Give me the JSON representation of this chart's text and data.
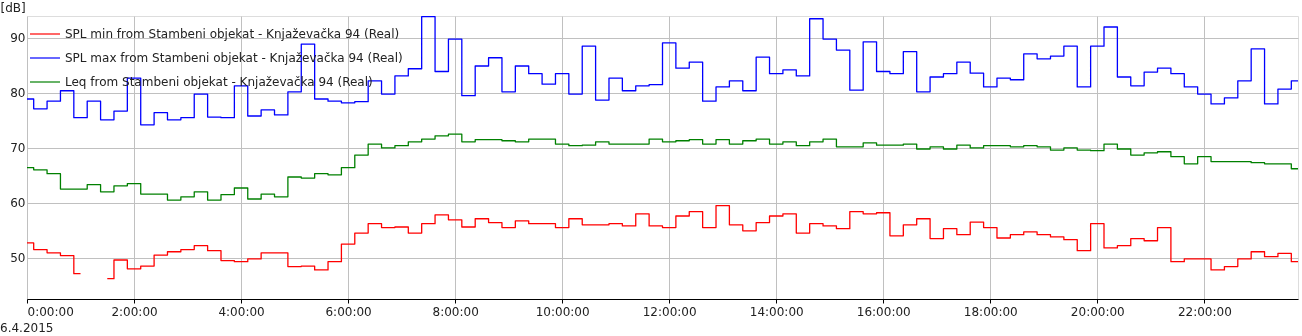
{
  "chart_data": {
    "type": "step",
    "ylabel": "[dB]",
    "x": [
      0,
      0.25,
      0.5,
      0.75,
      1,
      1.25,
      1.5,
      1.75,
      2,
      2.25,
      2.5,
      2.75,
      3,
      3.25,
      3.5,
      3.75,
      4,
      4.25,
      4.5,
      4.75,
      5,
      5.25,
      5.5,
      5.75,
      6,
      6.25,
      6.5,
      6.75,
      7,
      7.25,
      7.5,
      7.75,
      8,
      8.25,
      8.5,
      8.75,
      9,
      9.25,
      9.5,
      9.75,
      10,
      10.25,
      10.5,
      10.75,
      11,
      11.25,
      11.5,
      11.75,
      12,
      12.25,
      12.5,
      12.75,
      13,
      13.25,
      13.5,
      13.75,
      14,
      14.25,
      14.5,
      14.75,
      15,
      15.25,
      15.5,
      15.75,
      16,
      16.25,
      16.5,
      16.75,
      17,
      17.25,
      17.5,
      17.75,
      18,
      18.25,
      18.5,
      18.75,
      19,
      19.25,
      19.5,
      19.75,
      20,
      20.25,
      20.5,
      20.75,
      21,
      21.25,
      21.5,
      21.75,
      22,
      22.25,
      22.5,
      22.75,
      23,
      23.25,
      23.5,
      23.75
    ],
    "series": [
      {
        "name": "SPL min from Stambeni objekat - Knjaževačka 94 (Real)",
        "color": "#ff0000",
        "values": [
          52.7,
          51.5,
          50.9,
          50.4,
          47.1,
          null,
          46.2,
          49.6,
          48.0,
          48.5,
          50.5,
          51.1,
          51.5,
          52.2,
          51.3,
          49.5,
          49.3,
          49.8,
          50.9,
          50.9,
          48.4,
          48.5,
          47.8,
          49.3,
          52.5,
          54.5,
          56.2,
          55.5,
          55.6,
          54.5,
          56.2,
          57.8,
          56.9,
          55.6,
          57.1,
          56.4,
          55.5,
          56.7,
          56.2,
          56.2,
          55.5,
          57.1,
          56.0,
          56.0,
          56.2,
          55.8,
          58.0,
          55.8,
          55.5,
          57.6,
          58.4,
          55.5,
          59.5,
          56.0,
          54.9,
          56.4,
          57.6,
          58.0,
          54.5,
          56.2,
          55.8,
          55.3,
          58.4,
          58.0,
          58.2,
          54.0,
          56.0,
          57.1,
          53.5,
          55.3,
          54.2,
          56.5,
          55.5,
          53.6,
          54.2,
          54.7,
          54.2,
          53.8,
          53.3,
          51.3,
          56.2,
          51.8,
          52.2,
          53.5,
          53.1,
          55.5,
          49.3,
          49.8,
          49.8,
          47.8,
          48.4,
          49.8,
          51.1,
          50.2,
          50.8,
          49.3
        ]
      },
      {
        "name": "SPL max from Stambeni objekat - Knjaževačka 94 (Real)",
        "color": "#0000ff",
        "values": [
          78.9,
          77.1,
          78.5,
          80.4,
          75.5,
          78.5,
          75.1,
          76.7,
          82.7,
          74.2,
          76.4,
          75.1,
          75.5,
          79.8,
          75.6,
          75.5,
          81.3,
          75.8,
          76.9,
          76.0,
          80.2,
          88.9,
          78.9,
          78.5,
          78.2,
          78.4,
          82.2,
          79.8,
          83.1,
          84.4,
          93.9,
          83.9,
          89.8,
          79.5,
          84.9,
          86.4,
          80.2,
          84.9,
          83.5,
          81.6,
          83.5,
          79.8,
          88.5,
          78.7,
          82.7,
          80.4,
          81.3,
          81.5,
          89.1,
          84.5,
          85.6,
          78.5,
          81.1,
          82.2,
          80.4,
          86.5,
          83.5,
          84.2,
          83.1,
          93.5,
          89.8,
          87.8,
          80.5,
          89.3,
          83.9,
          83.5,
          87.5,
          80.2,
          82.9,
          83.5,
          85.6,
          83.6,
          81.1,
          82.7,
          82.4,
          87.1,
          86.2,
          86.7,
          88.5,
          81.1,
          88.5,
          92.0,
          82.9,
          81.3,
          83.8,
          84.5,
          83.5,
          81.1,
          79.8,
          78.0,
          79.1,
          82.2,
          88.0,
          78.0,
          80.7,
          82.2
        ]
      },
      {
        "name": "Leq from Stambeni objekat - Knjaževačka 94 (Real)",
        "color": "#008000",
        "values": [
          66.4,
          66.0,
          65.3,
          62.5,
          62.5,
          63.3,
          62.0,
          63.1,
          63.5,
          61.6,
          61.6,
          60.5,
          61.1,
          62.0,
          60.5,
          61.5,
          62.7,
          60.7,
          61.6,
          61.1,
          64.7,
          64.5,
          65.3,
          65.1,
          66.4,
          68.7,
          70.7,
          70.0,
          70.4,
          71.1,
          71.6,
          72.2,
          72.5,
          71.1,
          71.5,
          71.5,
          71.3,
          71.1,
          71.6,
          71.6,
          70.7,
          70.4,
          70.5,
          71.1,
          70.7,
          70.7,
          70.7,
          71.6,
          71.1,
          71.3,
          71.5,
          70.7,
          71.5,
          70.7,
          71.3,
          71.6,
          70.7,
          71.1,
          70.4,
          71.1,
          71.6,
          70.2,
          70.2,
          70.9,
          70.5,
          70.5,
          70.7,
          69.8,
          70.2,
          69.8,
          70.5,
          70.0,
          70.4,
          70.4,
          70.2,
          70.4,
          70.2,
          69.6,
          70.0,
          69.6,
          69.5,
          70.7,
          69.8,
          68.7,
          69.1,
          69.3,
          68.4,
          67.1,
          68.4,
          67.5,
          67.5,
          67.5,
          67.3,
          67.1,
          67.1,
          66.2
        ]
      }
    ],
    "xlim": [
      0,
      23.75
    ],
    "ylim": [
      42.5,
      94
    ],
    "xticks": [
      {
        "value": 0,
        "label": "0:00:00"
      },
      {
        "value": 2,
        "label": "2:00:00"
      },
      {
        "value": 4,
        "label": "4:00:00"
      },
      {
        "value": 6,
        "label": "6:00:00"
      },
      {
        "value": 8,
        "label": "8:00:00"
      },
      {
        "value": 10,
        "label": "10:00:00"
      },
      {
        "value": 12,
        "label": "12:00:00"
      },
      {
        "value": 14,
        "label": "14:00:00"
      },
      {
        "value": 16,
        "label": "16:00:00"
      },
      {
        "value": 18,
        "label": "18:00:00"
      },
      {
        "value": 20,
        "label": "20:00:00"
      },
      {
        "value": 22,
        "label": "22:00:00"
      }
    ],
    "yticks": [
      50,
      60,
      70,
      80,
      90
    ],
    "annotations": [
      "6.4.2015"
    ],
    "grid": true,
    "legend": "top left",
    "line_style": "solid"
  }
}
